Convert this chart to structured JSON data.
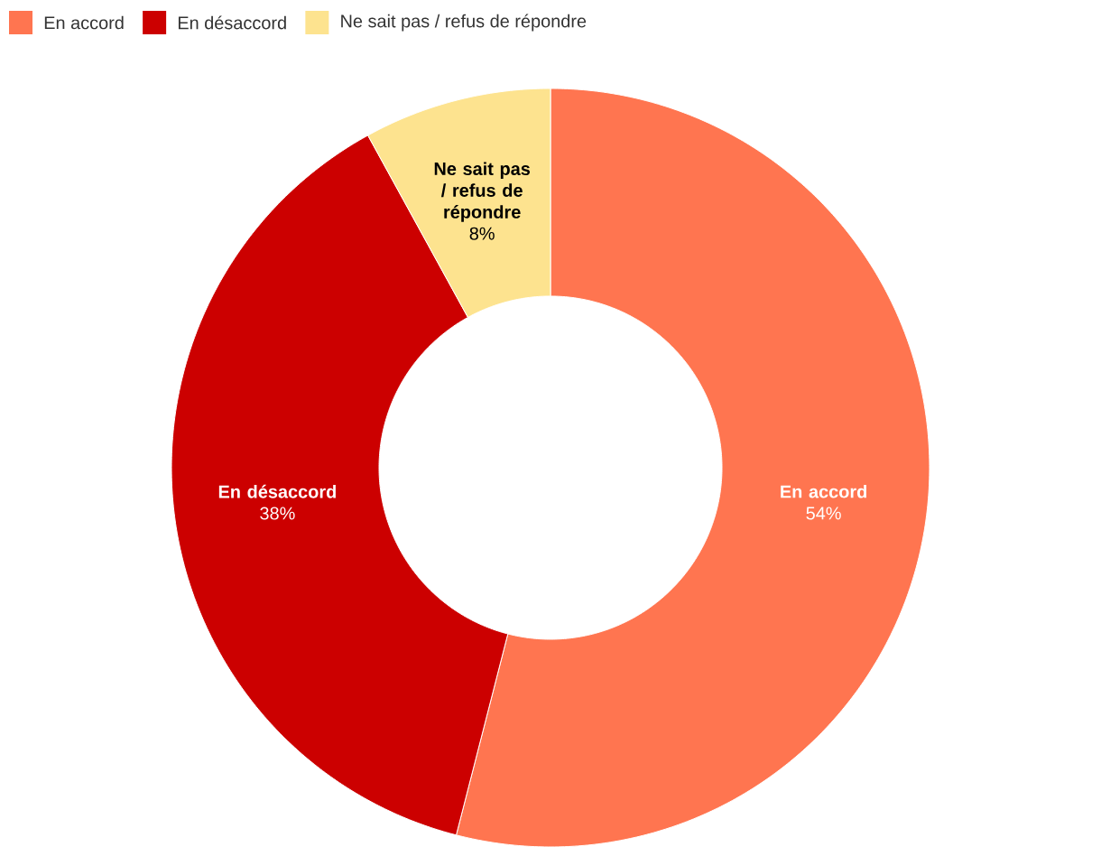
{
  "chart_data": {
    "type": "donut",
    "categories": [
      "En accord",
      "En désaccord",
      "Ne sait pas / refus de répondre"
    ],
    "values": [
      54,
      38,
      8
    ],
    "value_labels": [
      "54%",
      "38%",
      "8%"
    ],
    "colors": [
      "#ff7550",
      "#cc0000",
      "#fde38f"
    ],
    "legend": "top left"
  }
}
